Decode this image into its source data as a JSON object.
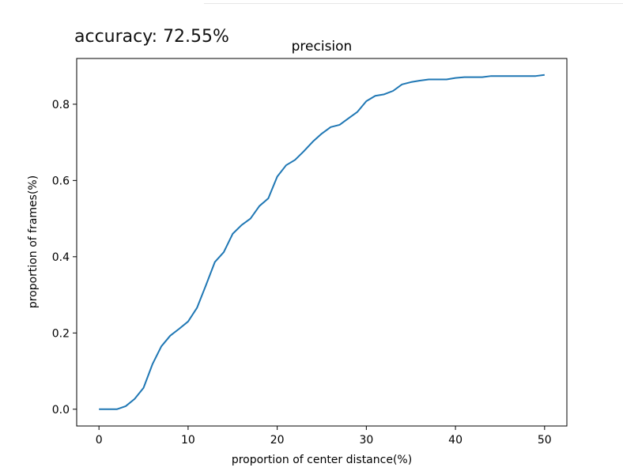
{
  "output": {
    "accuracy_text": "accuracy: 72.55%"
  },
  "chart_data": {
    "type": "line",
    "title": "precision",
    "xlabel": "proportion of center distance(%)",
    "ylabel": "proportion of frames(%)",
    "xlim": [
      -2.5,
      52.5
    ],
    "ylim": [
      -0.044,
      0.92
    ],
    "xticks": [
      0,
      10,
      20,
      30,
      40,
      50
    ],
    "yticks": [
      0.0,
      0.2,
      0.4,
      0.6,
      0.8
    ],
    "xtick_labels": [
      "0",
      "10",
      "20",
      "30",
      "40",
      "50"
    ],
    "ytick_labels": [
      "0.0",
      "0.2",
      "0.4",
      "0.6",
      "0.8"
    ],
    "grid": false,
    "line_color": "#1f77b4",
    "series": [
      {
        "x": [
          0,
          1,
          2,
          3,
          4,
          5,
          6,
          7,
          8,
          9,
          10,
          11,
          12,
          13,
          14,
          15,
          16,
          17,
          18,
          19,
          20,
          21,
          22,
          23,
          24,
          25,
          26,
          27,
          28,
          29,
          30,
          31,
          32,
          33,
          34,
          35,
          36,
          37,
          38,
          39,
          40,
          41,
          42,
          43,
          44,
          45,
          46,
          47,
          48,
          49,
          50
        ],
        "values": [
          0.0,
          0.0,
          0.0,
          0.008,
          0.027,
          0.056,
          0.118,
          0.165,
          0.193,
          0.211,
          0.23,
          0.266,
          0.325,
          0.386,
          0.412,
          0.46,
          0.483,
          0.5,
          0.533,
          0.553,
          0.61,
          0.64,
          0.654,
          0.677,
          0.702,
          0.723,
          0.74,
          0.746,
          0.763,
          0.78,
          0.808,
          0.822,
          0.826,
          0.835,
          0.852,
          0.858,
          0.862,
          0.865,
          0.865,
          0.865,
          0.869,
          0.871,
          0.871,
          0.871,
          0.874,
          0.874,
          0.874,
          0.874,
          0.874,
          0.874,
          0.877
        ]
      }
    ]
  }
}
